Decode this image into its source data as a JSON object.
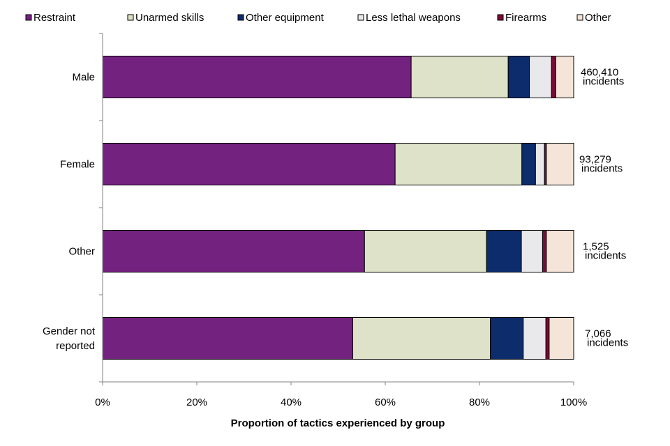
{
  "chart_data": {
    "type": "bar",
    "orientation": "horizontal",
    "stacked": true,
    "title": "",
    "xlabel": "Proportion of tactics experienced by group",
    "ylabel": "",
    "xlim": [
      0,
      100
    ],
    "x_ticks": [
      "0%",
      "20%",
      "40%",
      "60%",
      "80%",
      "100%"
    ],
    "legend_position": "top",
    "grid": false,
    "categories": [
      "Male",
      "Female",
      "Other",
      "Gender not reported"
    ],
    "series": [
      {
        "name": "Restraint",
        "color": "#73237f",
        "values": [
          65.5,
          62.1,
          55.6,
          53.1
        ]
      },
      {
        "name": "Unarmed skills",
        "color": "#dde2c8",
        "values": [
          20.6,
          26.9,
          25.9,
          29.2
        ]
      },
      {
        "name": "Other equipment",
        "color": "#0c2c6b",
        "values": [
          4.5,
          2.9,
          7.4,
          7.0
        ]
      },
      {
        "name": "Less lethal weapons",
        "color": "#e9e9ec",
        "values": [
          4.7,
          1.9,
          4.5,
          4.8
        ]
      },
      {
        "name": "Firearms",
        "color": "#7a0a36",
        "values": [
          0.9,
          0.4,
          0.8,
          0.7
        ]
      },
      {
        "name": "Other",
        "color": "#f4e5d8",
        "values": [
          3.8,
          5.8,
          5.8,
          5.2
        ]
      }
    ],
    "annotations": [
      {
        "count": "460,410",
        "unit": "incidents"
      },
      {
        "count": "93,279",
        "unit": "incidents"
      },
      {
        "count": "1,525",
        "unit": "incidents"
      },
      {
        "count": "7,066",
        "unit": "incidents"
      }
    ]
  }
}
